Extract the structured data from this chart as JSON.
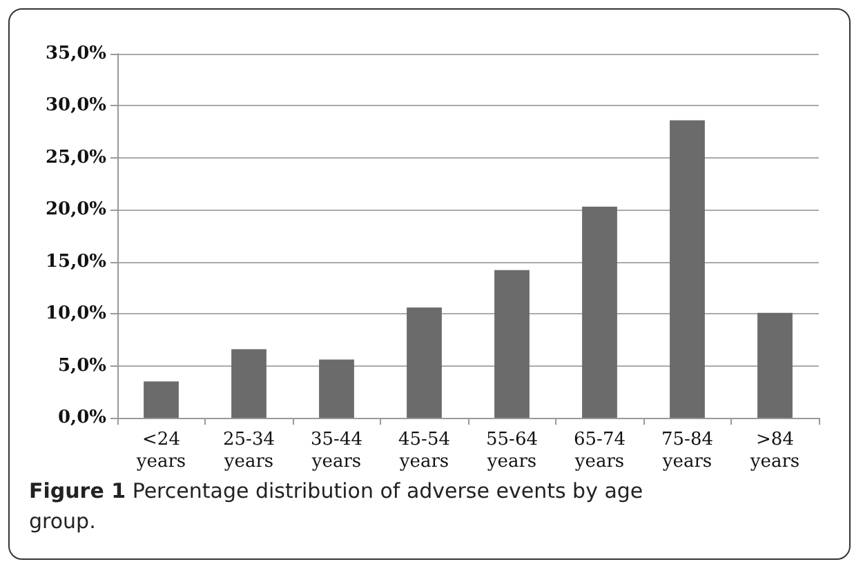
{
  "chart_data": {
    "type": "bar",
    "categories": [
      "<24 years",
      "25-34 years",
      "35-44 years",
      "45-54 years",
      "55-64 years",
      "65-74 years",
      "75-84 years",
      ">84 years"
    ],
    "values": [
      3.5,
      6.6,
      5.6,
      10.6,
      14.2,
      20.3,
      28.6,
      10.1
    ],
    "color": "#6b6b6b",
    "ylim": [
      0,
      35
    ],
    "yticks": [
      {
        "value": 0,
        "label": "0,0%"
      },
      {
        "value": 5,
        "label": "5,0%"
      },
      {
        "value": 10,
        "label": "10,0%"
      },
      {
        "value": 15,
        "label": "15,0%"
      },
      {
        "value": 20,
        "label": "20,0%"
      },
      {
        "value": 25,
        "label": "25,0%"
      },
      {
        "value": 30,
        "label": "30,0%"
      },
      {
        "value": 35,
        "label": "35,0%"
      }
    ],
    "grid": "y",
    "annotations": [
      "Figure 1 Percentage distribution of adverse events by age group."
    ]
  }
}
